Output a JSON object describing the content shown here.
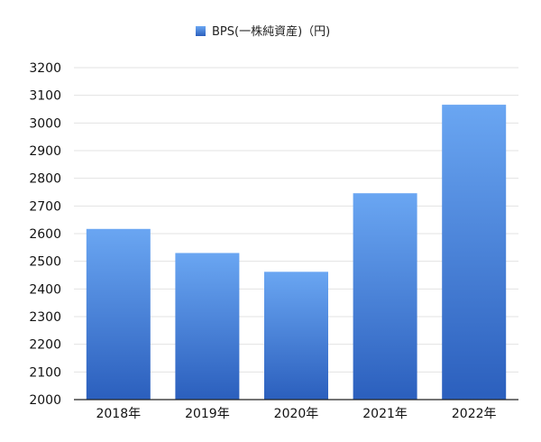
{
  "chart_data": {
    "type": "bar",
    "categories": [
      "2018年",
      "2019年",
      "2020年",
      "2021年",
      "2022年"
    ],
    "series": [
      {
        "name": "BPS(一株純資産)（円)",
        "values": [
          2617,
          2530,
          2462,
          2746,
          3066
        ]
      }
    ],
    "ylim": [
      2000,
      3200
    ],
    "yticks": [
      2000,
      2100,
      2200,
      2300,
      2400,
      2500,
      2600,
      2700,
      2800,
      2900,
      3000,
      3100,
      3200
    ],
    "grid": true,
    "legend_position": "top-center",
    "colors": {
      "bar_top": "#6aa6f2",
      "bar_bottom": "#2b5fbd",
      "grid": "#e3e3e3",
      "axis": "#222222"
    }
  }
}
